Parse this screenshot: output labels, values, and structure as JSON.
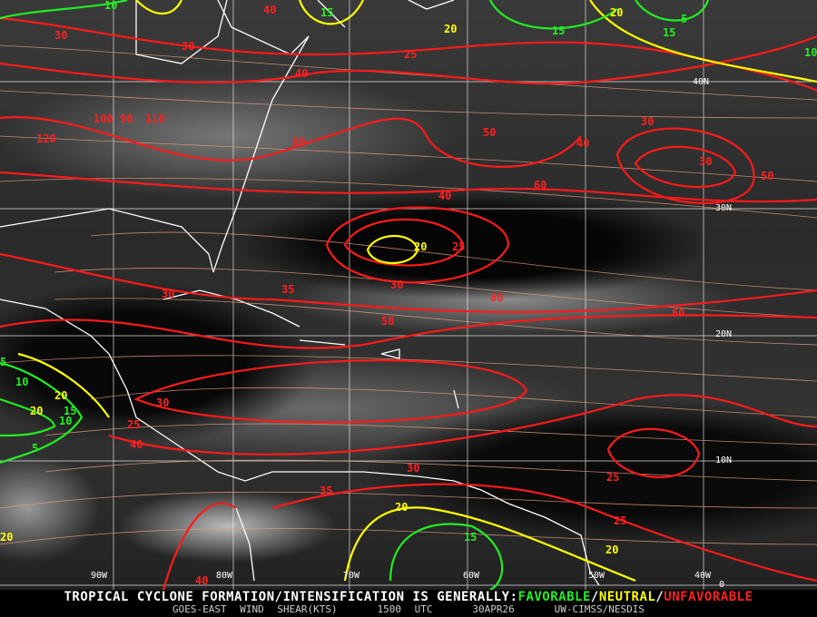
{
  "caption": {
    "main_prefix": "TROPICAL CYCLONE FORMATION/INTENSIFICATION IS GENERALLY:",
    "favorable": "FAVORABLE",
    "sep1": "/",
    "neutral": "NEUTRAL",
    "sep2": "/",
    "unfavorable": "UNFAVORABLE",
    "product": "GOES-EAST WIND SHEAR(KTS)",
    "time": "1500 UTC",
    "date": "30APR26",
    "source": "UW-CIMSS/NESDIS"
  },
  "colors": {
    "favorable": "#22ee22",
    "neutral": "#ffff00",
    "unfavorable": "#ff2020",
    "streamlines": "#e8a080",
    "grid": "#ffffff",
    "coastline": "#ffffff"
  },
  "grid": {
    "latitudes": [
      "40N",
      "30N",
      "20N",
      "10N",
      "0"
    ],
    "longitudes": [
      "90W",
      "80W",
      "70W",
      "60W",
      "50W",
      "40W"
    ]
  },
  "contour_labels": [
    "30",
    "40",
    "30",
    "25",
    "40",
    "60",
    "50",
    "40",
    "30",
    "30",
    "50",
    "60",
    "40",
    "120",
    "100",
    "90",
    "110",
    "20",
    "25",
    "30",
    "35",
    "30",
    "58",
    "60",
    "60",
    "30",
    "25",
    "30",
    "40",
    "35",
    "25",
    "25",
    "20",
    "20",
    "15",
    "20",
    "15",
    "10",
    "5",
    "10",
    "20",
    "15",
    "20",
    "10",
    "5",
    "10",
    "15",
    "20",
    "15",
    "5",
    "20",
    "40"
  ]
}
